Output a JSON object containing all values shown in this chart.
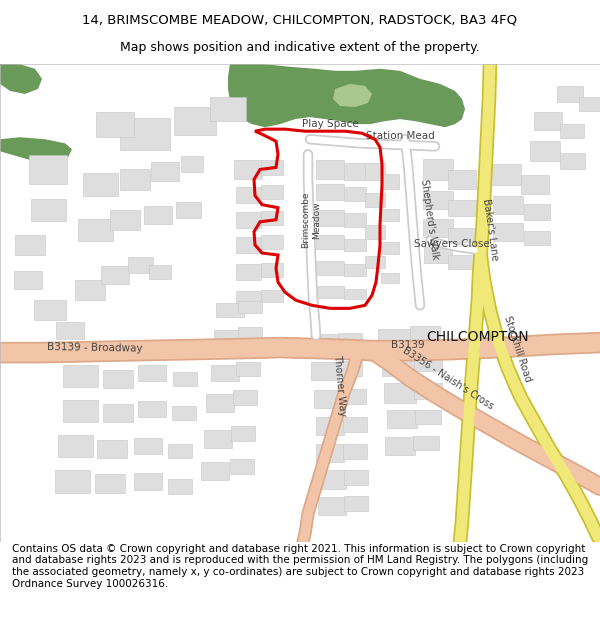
{
  "title_line1": "14, BRIMSCOMBE MEADOW, CHILCOMPTON, RADSTOCK, BA3 4FQ",
  "title_line2": "Map shows position and indicative extent of the property.",
  "footer_text": "Contains OS data © Crown copyright and database right 2021. This information is subject to Crown copyright and database rights 2023 and is reproduced with the permission of HM Land Registry. The polygons (including the associated geometry, namely x, y co-ordinates) are subject to Crown copyright and database rights 2023 Ordnance Survey 100026316.",
  "title_fontsize": 9.5,
  "subtitle_fontsize": 9.0,
  "footer_fontsize": 7.5,
  "bg_color": "#ffffff",
  "map_bg": "#f7f7f7",
  "road_main_color": "#f2c4a8",
  "road_main_edge": "#dda888",
  "road_yellow_color": "#f0e878",
  "road_yellow_edge": "#c8c030",
  "road_white_color": "#ffffff",
  "road_white_edge": "#cccccc",
  "building_color": "#dedede",
  "building_edge": "#c8c8c8",
  "green_color": "#6a9a5a",
  "property_color": "#dd0000",
  "label_color": "#444444",
  "place_color": "#222222"
}
